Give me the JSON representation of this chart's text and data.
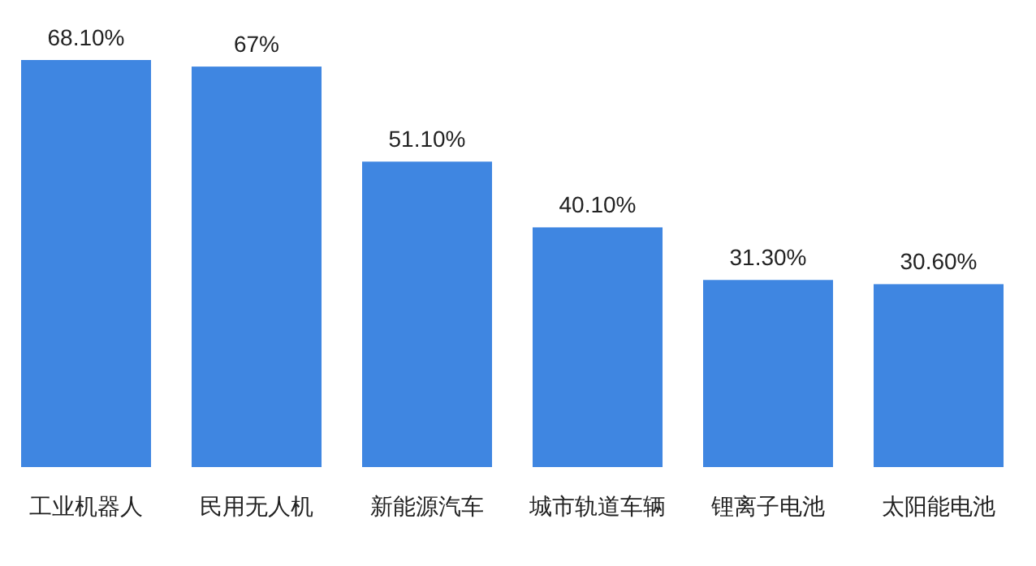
{
  "chart_data": {
    "type": "bar",
    "categories": [
      "工业机器人",
      "民用无人机",
      "新能源汽车",
      "城市轨道车辆",
      "锂离子电池",
      "太阳能电池"
    ],
    "values": [
      68.1,
      67,
      51.1,
      40.1,
      31.3,
      30.6
    ],
    "value_labels": [
      "68.10%",
      "67%",
      "51.10%",
      "40.10%",
      "31.30%",
      "30.60%"
    ],
    "color": "#3f86e1"
  }
}
